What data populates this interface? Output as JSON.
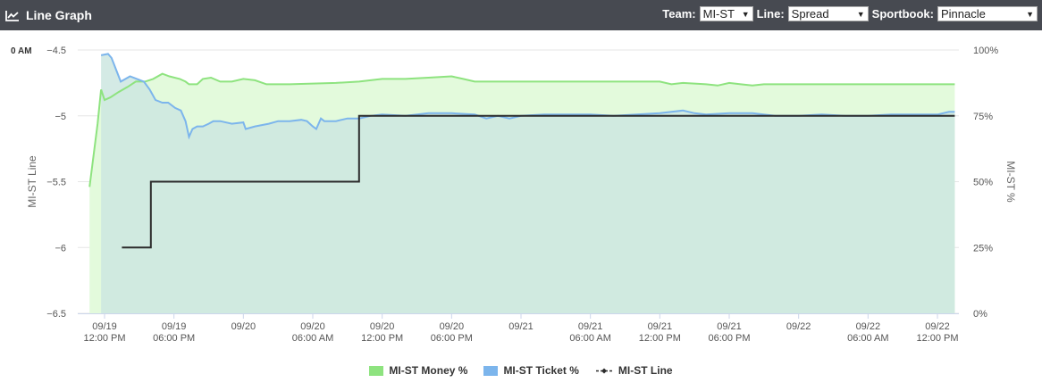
{
  "header": {
    "title": "Line Graph",
    "team_label": "Team:",
    "team_value": "MI-ST",
    "line_label": "Line:",
    "line_value": "Spread",
    "sportsbook_label": "Sportbook:",
    "sportsbook_value": "Pinnacle"
  },
  "corner_label": "0 AM",
  "legend": {
    "money": "MI-ST Money %",
    "ticket": "MI-ST Ticket %",
    "line": "MI-ST Line"
  },
  "colors": {
    "money": "#8ee37f",
    "money_fill": "#e3fadc",
    "ticket": "#7cb5ec",
    "ticket_fill": "#cce6e1",
    "line": "#2b2b2b"
  },
  "chart_data": {
    "type": "line",
    "x_unit": "hours from 09/19 12:00 PM",
    "x_range": [
      -1.3,
      73.5
    ],
    "y_left": {
      "label": "MI-ST Line",
      "ticks": [
        -4.5,
        -5,
        -5.5,
        -6,
        -6.5
      ],
      "range": [
        -6.5,
        -4.5
      ]
    },
    "y_right": {
      "label": "MI-ST %",
      "ticks": [
        "100%",
        "75%",
        "50%",
        "25%",
        "0%"
      ],
      "range": [
        0,
        100
      ]
    },
    "x_ticks": [
      {
        "x": 0,
        "top": "09/19",
        "bottom": "12:00 PM"
      },
      {
        "x": 6,
        "top": "09/19",
        "bottom": "06:00 PM"
      },
      {
        "x": 12,
        "top": "09/20",
        "bottom": ""
      },
      {
        "x": 18,
        "top": "09/20",
        "bottom": "06:00 AM"
      },
      {
        "x": 24,
        "top": "09/20",
        "bottom": "12:00 PM"
      },
      {
        "x": 30,
        "top": "09/20",
        "bottom": "06:00 PM"
      },
      {
        "x": 36,
        "top": "09/21",
        "bottom": ""
      },
      {
        "x": 42,
        "top": "09/21",
        "bottom": "06:00 AM"
      },
      {
        "x": 48,
        "top": "09/21",
        "bottom": "12:00 PM"
      },
      {
        "x": 54,
        "top": "09/21",
        "bottom": "06:00 PM"
      },
      {
        "x": 60,
        "top": "09/22",
        "bottom": ""
      },
      {
        "x": 66,
        "top": "09/22",
        "bottom": "06:00 AM"
      },
      {
        "x": 72,
        "top": "09/22",
        "bottom": "12:00 PM"
      }
    ],
    "series": [
      {
        "name": "MI-ST Money %",
        "axis": "right",
        "points": [
          [
            -1.3,
            48
          ],
          [
            -0.6,
            72
          ],
          [
            -0.3,
            85
          ],
          [
            0,
            81
          ],
          [
            0.5,
            82
          ],
          [
            1.2,
            84
          ],
          [
            2,
            86
          ],
          [
            2.7,
            88
          ],
          [
            3.5,
            88
          ],
          [
            4.2,
            89
          ],
          [
            5,
            91
          ],
          [
            5.6,
            90
          ],
          [
            6.5,
            89
          ],
          [
            7,
            88
          ],
          [
            7.3,
            87
          ],
          [
            8,
            87
          ],
          [
            8.5,
            89
          ],
          [
            9.2,
            89.5
          ],
          [
            10,
            88
          ],
          [
            11,
            88
          ],
          [
            12,
            89
          ],
          [
            13,
            88.5
          ],
          [
            14,
            87
          ],
          [
            16,
            87
          ],
          [
            20,
            87.5
          ],
          [
            22,
            88
          ],
          [
            24,
            89
          ],
          [
            26,
            89
          ],
          [
            28,
            89.5
          ],
          [
            30,
            90
          ],
          [
            31,
            89
          ],
          [
            32,
            88
          ],
          [
            34,
            88
          ],
          [
            36,
            88
          ],
          [
            40,
            88
          ],
          [
            44,
            88
          ],
          [
            46,
            88
          ],
          [
            48,
            88
          ],
          [
            49,
            87
          ],
          [
            50,
            87.5
          ],
          [
            52,
            87
          ],
          [
            53,
            86.5
          ],
          [
            54,
            87.5
          ],
          [
            55,
            87
          ],
          [
            56,
            86.5
          ],
          [
            57,
            87
          ],
          [
            58,
            87
          ],
          [
            60,
            87
          ],
          [
            62,
            87
          ],
          [
            64,
            87
          ],
          [
            66,
            87
          ],
          [
            68,
            87
          ],
          [
            70,
            87
          ],
          [
            72,
            87
          ],
          [
            73.5,
            87
          ]
        ]
      },
      {
        "name": "MI-ST Ticket %",
        "axis": "right",
        "points": [
          [
            -0.3,
            98
          ],
          [
            0.3,
            98.5
          ],
          [
            0.6,
            97
          ],
          [
            1.4,
            88
          ],
          [
            2.2,
            90
          ],
          [
            2.8,
            89
          ],
          [
            3.4,
            88
          ],
          [
            3.9,
            85
          ],
          [
            4.4,
            81
          ],
          [
            5,
            80
          ],
          [
            5.5,
            80
          ],
          [
            6.1,
            78
          ],
          [
            6.6,
            77
          ],
          [
            7,
            73
          ],
          [
            7.3,
            67
          ],
          [
            7.6,
            70
          ],
          [
            8,
            71
          ],
          [
            8.5,
            71
          ],
          [
            9,
            72
          ],
          [
            9.4,
            73
          ],
          [
            10,
            73
          ],
          [
            11,
            72
          ],
          [
            12,
            72.5
          ],
          [
            12.2,
            70
          ],
          [
            13,
            71
          ],
          [
            13.6,
            71.5
          ],
          [
            14.2,
            72
          ],
          [
            15,
            73
          ],
          [
            16,
            73
          ],
          [
            17,
            73.5
          ],
          [
            17.5,
            73
          ],
          [
            18,
            71
          ],
          [
            18.3,
            70
          ],
          [
            18.7,
            74
          ],
          [
            19,
            73
          ],
          [
            20,
            73
          ],
          [
            21,
            74
          ],
          [
            22,
            74
          ],
          [
            23,
            75
          ],
          [
            24,
            75.5
          ],
          [
            26,
            75
          ],
          [
            28,
            76
          ],
          [
            30,
            76
          ],
          [
            32,
            75.5
          ],
          [
            33,
            74
          ],
          [
            34,
            75
          ],
          [
            35,
            74
          ],
          [
            36,
            75
          ],
          [
            38,
            75.5
          ],
          [
            40,
            75.5
          ],
          [
            42,
            75.5
          ],
          [
            44,
            75
          ],
          [
            46,
            75.5
          ],
          [
            48,
            76
          ],
          [
            50,
            77
          ],
          [
            51,
            76
          ],
          [
            52,
            75.5
          ],
          [
            54,
            76
          ],
          [
            56,
            76
          ],
          [
            58,
            75
          ],
          [
            60,
            75
          ],
          [
            62,
            75.5
          ],
          [
            64,
            75
          ],
          [
            66,
            75
          ],
          [
            68,
            75.5
          ],
          [
            70,
            75.5
          ],
          [
            72,
            75.5
          ],
          [
            73,
            76.5
          ],
          [
            73.5,
            76.5
          ]
        ]
      },
      {
        "name": "MI-ST Line",
        "axis": "left",
        "points": [
          [
            1.5,
            -6
          ],
          [
            4,
            -6
          ],
          [
            4,
            -5.5
          ],
          [
            22,
            -5.5
          ],
          [
            22,
            -5
          ],
          [
            73.5,
            -5
          ]
        ]
      }
    ],
    "grid": "horizontal",
    "legend_position": "bottom-center"
  }
}
